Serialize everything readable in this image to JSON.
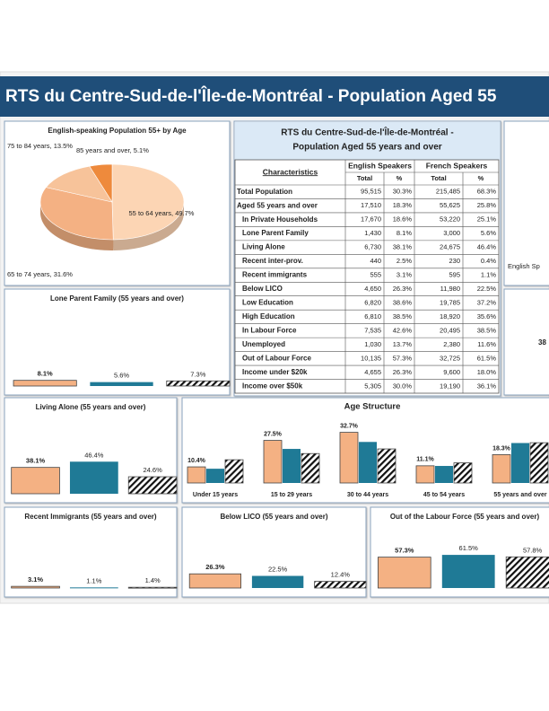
{
  "header": {
    "title": "RTS du Centre-Sud-de-l'Île-de-Montréal - Population Aged 55"
  },
  "table": {
    "title_lines": [
      "RTS du Centre-Sud-de-l'Île-de-Montréal -",
      "Population Aged 55 years and over"
    ],
    "header": [
      "Characteristics",
      "English Speakers",
      "French Speakers"
    ],
    "subheader": [
      "Total",
      "%",
      "Total",
      "%"
    ],
    "rows": [
      [
        "Total Population",
        "95,515",
        "30.3%",
        "215,485",
        "68.3%"
      ],
      [
        "Aged 55 years and over",
        "17,510",
        "18.3%",
        "55,625",
        "25.8%"
      ],
      [
        "In Private Households",
        "17,670",
        "18.6%",
        "53,220",
        "25.1%"
      ],
      [
        "Lone Parent Family",
        "1,430",
        "8.1%",
        "3,000",
        "5.6%"
      ],
      [
        "Living Alone",
        "6,730",
        "38.1%",
        "24,675",
        "46.4%"
      ],
      [
        "Recent inter-prov.",
        "440",
        "2.5%",
        "230",
        "0.4%"
      ],
      [
        "Recent immigrants",
        "555",
        "3.1%",
        "595",
        "1.1%"
      ],
      [
        "Below LICO",
        "4,650",
        "26.3%",
        "11,980",
        "22.5%"
      ],
      [
        "Low Education",
        "6,820",
        "38.6%",
        "19,785",
        "37.2%"
      ],
      [
        "High Education",
        "6,810",
        "38.5%",
        "18,920",
        "35.6%"
      ],
      [
        "In Labour Force",
        "7,535",
        "42.6%",
        "20,495",
        "38.5%"
      ],
      [
        "Unemployed",
        "1,030",
        "13.7%",
        "2,380",
        "11.6%"
      ],
      [
        "Out of Labour Force",
        "10,135",
        "57.3%",
        "32,725",
        "61.5%"
      ],
      [
        "Income under $20k",
        "4,655",
        "26.3%",
        "9,600",
        "18.0%"
      ],
      [
        "Income over $50k",
        "5,305",
        "30.0%",
        "19,190",
        "36.1%"
      ]
    ]
  },
  "side_panel": {
    "label": "English Sp",
    "value_label": "38"
  },
  "chart_data": [
    {
      "type": "pie",
      "title": "English-speaking Population 55+ by Age",
      "values": [
        49.7,
        31.6,
        13.5,
        5.1
      ],
      "value_labels": [
        "55 to 64 years, 49.7%",
        "65 to 74 years, 31.6%",
        "75 to 84 years, 13.5%",
        "85 years and over, 5.1%"
      ],
      "colors": [
        "#fcd5b4",
        "#f4b183",
        "#f7c39a",
        "#ee8a3c"
      ]
    },
    {
      "type": "bar",
      "title": "Lone Parent Family (55 years and over)",
      "values": [
        8.1,
        5.6,
        7.3
      ],
      "value_labels": [
        "8.1%",
        "5.6%",
        "7.3%"
      ],
      "colors": [
        "#f4b183",
        "#1f7a96",
        "hatch"
      ],
      "ylim": [
        0,
        100
      ]
    },
    {
      "type": "bar",
      "title": "Living Alone (55 years and over)",
      "values": [
        38.1,
        46.4,
        24.6
      ],
      "value_labels": [
        "38.1%",
        "46.4%",
        "24.6%"
      ],
      "colors": [
        "#f4b183",
        "#1f7a96",
        "hatch"
      ],
      "ylim": [
        0,
        100
      ]
    },
    {
      "type": "grouped_bar",
      "title": "Age Structure",
      "categories": [
        "Under 15 years",
        "15 to 29 years",
        "30 to 44 years",
        "45 to 54 years",
        "55 years and over"
      ],
      "series": [
        {
          "color": "#f4b183",
          "values": [
            10.4,
            27.5,
            32.7,
            11.1,
            18.3
          ],
          "value_labels": [
            "10.4%",
            "27.5%",
            "32.7%",
            "11.1%",
            "18.3%"
          ]
        },
        {
          "color": "#1f7a96",
          "values": [
            9.2,
            22,
            26.5,
            11,
            25.8
          ]
        },
        {
          "color": "hatch",
          "values": [
            15,
            19,
            22,
            13,
            26
          ]
        }
      ],
      "ylim": [
        0,
        40
      ]
    },
    {
      "type": "bar",
      "title": "Recent Immigrants (55 years and over)",
      "values": [
        3.1,
        1.1,
        1.4
      ],
      "value_labels": [
        "3.1%",
        "1.1%",
        "1.4%"
      ],
      "colors": [
        "#f4b183",
        "#1f7a96",
        "hatch"
      ],
      "ylim": [
        0,
        100
      ]
    },
    {
      "type": "bar",
      "title": "Below LICO (55 years and over)",
      "values": [
        26.3,
        22.5,
        12.4
      ],
      "value_labels": [
        "26.3%",
        "22.5%",
        "12.4%"
      ],
      "colors": [
        "#f4b183",
        "#1f7a96",
        "hatch"
      ],
      "ylim": [
        0,
        100
      ]
    },
    {
      "type": "bar",
      "title": "Out of the Labour Force (55 years and over)",
      "values": [
        57.3,
        61.5,
        57.8
      ],
      "value_labels": [
        "57.3%",
        "61.5%",
        "57.8%"
      ],
      "colors": [
        "#f4b183",
        "#1f7a96",
        "hatch"
      ],
      "ylim": [
        0,
        100
      ]
    }
  ]
}
